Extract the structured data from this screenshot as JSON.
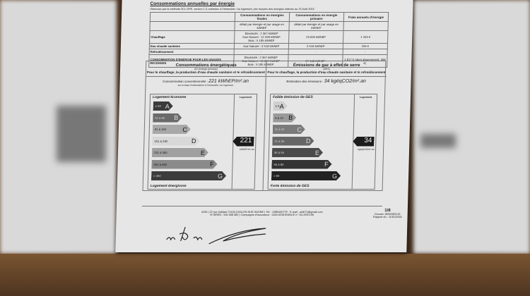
{
  "title": "Consommations annuelles par énergie",
  "subtitle": "Obtenues par la méthode 3CL-DPE, version 1.3, estimées à l'immeuble / au logement, prix moyens des énergies indexés au 15 Août 2015",
  "table": {
    "headers": [
      "",
      "Consommations en énergies finales",
      "Consommations en énergie primaire",
      "Frais annuels d'énergie"
    ],
    "subheaders": [
      "",
      "détail par énergie et par usage en kWhEF",
      "détail par énergie et par usage en kWhEP",
      ""
    ],
    "rows": [
      {
        "label": "Chauffage",
        "final": [
          "Electricité : 2 367 kWhEF",
          "Gaz Naturel : 12 339 kWhEF",
          "Bois : 5 185 kWhEF"
        ],
        "primary": "23 630 kWhEP",
        "cost": "1 253 €"
      },
      {
        "label": "Eau chaude sanitaire",
        "final": [
          "Gaz Naturel : 3 518 kWhEF"
        ],
        "primary": "3 518 kWhEP",
        "cost": "206 €"
      },
      {
        "label": "Refroidissement",
        "final": [
          "-"
        ],
        "primary": "-",
        "cost": "-"
      },
      {
        "label": "CONSOMMATION D'ENERGIE POUR LES USAGES RECENSES",
        "final": [
          "Electricité : 2 367 kWhEF",
          "Gaz Naturel : 15 857 kWhEF",
          "Bois : 5 185 kWhEF"
        ],
        "primary": "27 148 kWhEP",
        "cost": "1 817 € (dont abonnement: 358 €)"
      }
    ]
  },
  "energy": {
    "title": "Consommations énergétiques",
    "sub": "(En énergie primaire)",
    "desc": "Pour le chauffage, la production d'eau chaude sanitaire et le refroidissement",
    "estimate_label": "Consommation conventionnelle :",
    "estimate_value": "221 kWhEP/m².an",
    "estimate_note": "sur la base d'estimations à l'immeuble / au logement",
    "top": "Logement économe",
    "bottom": "Logement énergivore",
    "col": "Logement",
    "value": "221",
    "unit": "kWhEP/m².an",
    "current": "D",
    "classes": [
      {
        "range": "≤ 50",
        "letter": "A"
      },
      {
        "range": "51 à 90",
        "letter": "B"
      },
      {
        "range": "91 à 150",
        "letter": "C"
      },
      {
        "range": "151 à 230",
        "letter": "D"
      },
      {
        "range": "231 à 330",
        "letter": "E"
      },
      {
        "range": "331 à 450",
        "letter": "F"
      },
      {
        "range": "> 450",
        "letter": "G"
      }
    ]
  },
  "ges": {
    "title": "Émissions de gaz à effet de serre",
    "sub": "(GES)",
    "desc": "Pour le chauffage, la production d'eau chaude sanitaire et le refroidissement",
    "estimate_label": "Estimation des émissions :",
    "estimate_value": "34 kgéqCO2/m².an",
    "top": "Faible émission de GES",
    "bottom": "Forte émission de GES",
    "col": "Logement",
    "value": "34",
    "unit": "kgéqCO2/m².an",
    "current": "D",
    "classes": [
      {
        "range": "≤ 5",
        "letter": "A"
      },
      {
        "range": "6 à 10",
        "letter": "B"
      },
      {
        "range": "11 à 20",
        "letter": "C"
      },
      {
        "range": "21 à 35",
        "letter": "D"
      },
      {
        "range": "36 à 55",
        "letter": "E"
      },
      {
        "range": "56 à 80",
        "letter": "F"
      },
      {
        "range": "> 80",
        "letter": "G"
      }
    ]
  },
  "footer": {
    "line1": "A2DI | 22 rue Gaillard 71100 CHALON SUR SAONE | Tél. : 0385445779 - E-mail : a2di71@gmail.com",
    "line2": "N°SIREN : 500 308 382 | Compagnie d'assurance : GAN ASSURANCE n° 101.656.190",
    "page": "1/8",
    "dossier": "Dossier 18/9208/GJG",
    "rapport": "Rapport du : 11/01/2018"
  },
  "colors": {
    "energy": [
      "#3a3a3a",
      "#6a6a6a",
      "#a8a8a8",
      "#d8d8d8",
      "#a0a0a0",
      "#8a8a8a",
      "#3c3c3c"
    ],
    "ges": [
      "#cfcfcf",
      "#9a9a9a",
      "#7a7a7a",
      "#666",
      "#4a4a4a",
      "#333",
      "#222"
    ]
  }
}
